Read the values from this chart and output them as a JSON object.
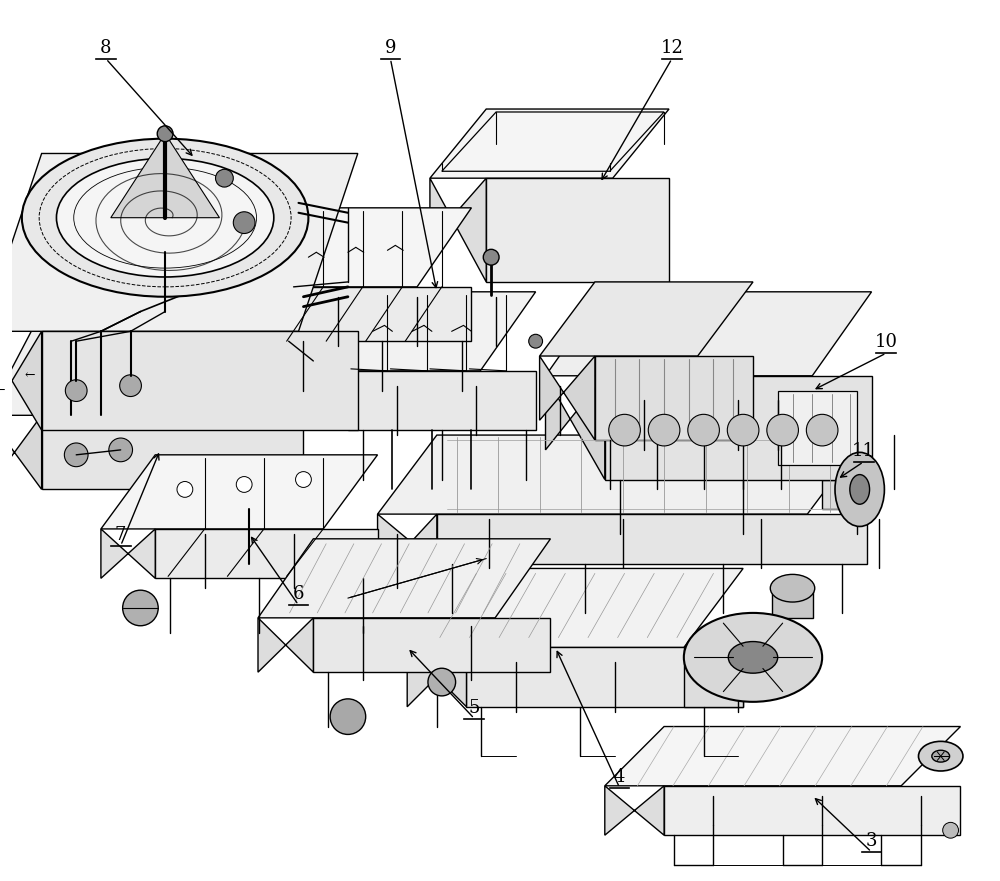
{
  "bg_color": "#ffffff",
  "lc": "#000000",
  "lw": 1.0,
  "figsize": [
    10.0,
    8.81
  ],
  "dpi": 100,
  "fc_light": "#f8f8f8",
  "fc_mid": "#eeeeee",
  "fc_dark": "#dddddd",
  "fc_darker": "#cccccc"
}
